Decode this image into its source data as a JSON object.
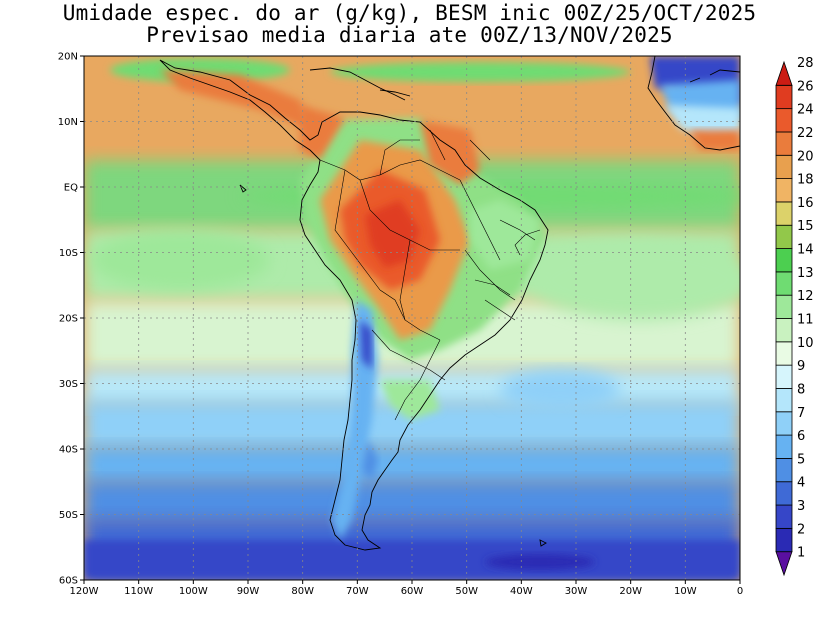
{
  "title_line1": "Umidade espec. do ar (g/kg), BESM inic 00Z/25/OCT/2025",
  "title_line2": "Previsao media diaria ate 00Z/13/NOV/2025",
  "lat_labels": [
    "20N",
    "10N",
    "EQ",
    "10S",
    "20S",
    "30S",
    "40S",
    "50S",
    "60S"
  ],
  "lon_labels": [
    "120W",
    "110W",
    "100W",
    "90W",
    "80W",
    "70W",
    "60W",
    "50W",
    "40W",
    "30W",
    "20W",
    "10W",
    "0"
  ],
  "colorbar": {
    "levels": [
      "1",
      "2",
      "3",
      "4",
      "5",
      "6",
      "7",
      "8",
      "9",
      "10",
      "11",
      "12",
      "13",
      "14",
      "15",
      "16",
      "18",
      "20",
      "22",
      "24",
      "26",
      "28"
    ],
    "colors": [
      "#5a0fa0",
      "#2a2ab4",
      "#3646c8",
      "#3f6ad6",
      "#4f8fe4",
      "#66b2f2",
      "#8fd0f8",
      "#b4e6fb",
      "#d6f5fc",
      "#e9fbe4",
      "#c9f2c0",
      "#9ee89a",
      "#6fdc72",
      "#4ccf50",
      "#92c84a",
      "#dcd26a",
      "#f0b464",
      "#e8a04e",
      "#ea7c3c",
      "#ea5a2c",
      "#e03c20",
      "#cc1c14"
    ]
  },
  "colors": {
    "ocean_tropical": "#e8a860",
    "land_peak": "#ea5a2c",
    "grid": "#888888"
  }
}
